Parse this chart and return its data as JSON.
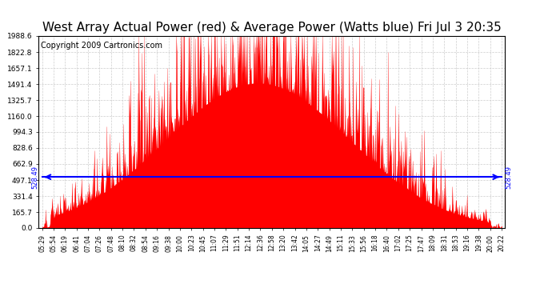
{
  "title": "West Array Actual Power (red) & Average Power (Watts blue) Fri Jul 3 20:35",
  "copyright": "Copyright 2009 Cartronics.com",
  "average_power": 528.49,
  "y_max": 1988.6,
  "y_ticks": [
    0.0,
    165.7,
    331.4,
    497.1,
    662.9,
    828.6,
    994.3,
    1160.0,
    1325.7,
    1491.4,
    1657.1,
    1822.8,
    1988.6
  ],
  "x_labels": [
    "05:29",
    "05:54",
    "06:19",
    "06:41",
    "07:04",
    "07:26",
    "07:48",
    "08:10",
    "08:32",
    "08:54",
    "09:16",
    "09:38",
    "10:00",
    "10:23",
    "10:45",
    "11:07",
    "11:29",
    "11:51",
    "12:14",
    "12:36",
    "12:58",
    "13:20",
    "13:42",
    "14:05",
    "14:27",
    "14:49",
    "15:11",
    "15:33",
    "15:56",
    "16:18",
    "16:40",
    "17:02",
    "17:25",
    "17:47",
    "18:09",
    "18:31",
    "18:53",
    "19:16",
    "19:38",
    "20:00",
    "20:22"
  ],
  "background_color": "#ffffff",
  "plot_bg_color": "#ffffff",
  "bar_color": "#ff0000",
  "avg_line_color": "#0000ff",
  "grid_color": "#c8c8c8",
  "title_fontsize": 11,
  "copyright_fontsize": 7,
  "n_labels": 41,
  "n_samples": 820
}
